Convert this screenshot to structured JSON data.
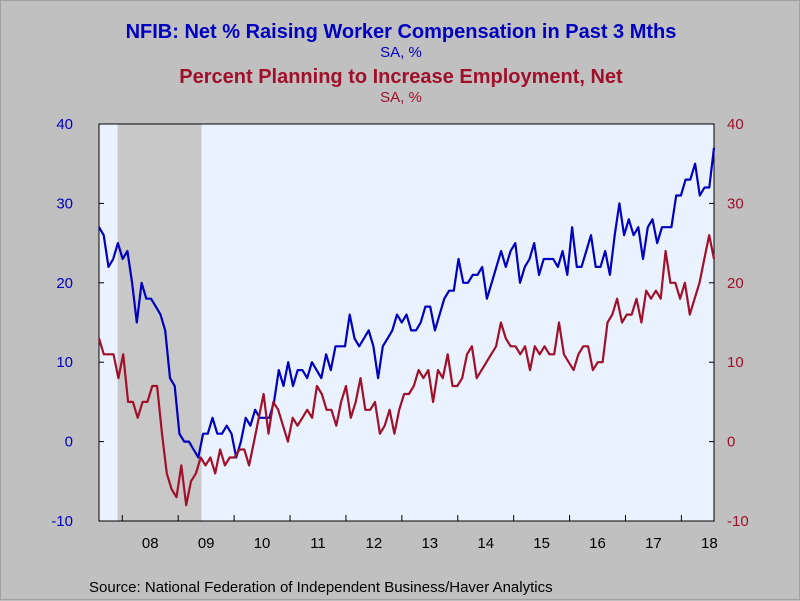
{
  "titles": {
    "title1": "NFIB: Net % Raising Worker Compensation in Past 3 Mths",
    "subtitle1": "SA, %",
    "title2": "Percent Planning to Increase Employment, Net",
    "subtitle2": "SA, %"
  },
  "source": "Source:  National Federation of Independent Business/Haver Analytics",
  "colors": {
    "background": "#c0c0c0",
    "plot_bg": "#eaf2ff",
    "recession": "#c8c8c8",
    "series1": "#0000c0",
    "series2": "#a0102a",
    "axis_left": "#0000c0",
    "axis_right": "#a0102a"
  },
  "chart_data": {
    "type": "line",
    "x_start": "2007-08",
    "x_end": "2018-08",
    "x_ticks": [
      "08",
      "09",
      "10",
      "11",
      "12",
      "13",
      "14",
      "15",
      "16",
      "17",
      "18"
    ],
    "ylim": [
      -10,
      40
    ],
    "y_ticks": [
      -10,
      0,
      10,
      20,
      30,
      40
    ],
    "y2lim": [
      -10,
      40
    ],
    "y2_ticks": [
      -10,
      0,
      10,
      20,
      30,
      40
    ],
    "grid": false,
    "recession_shading": [
      {
        "start": "2007-12",
        "end": "2009-06"
      }
    ],
    "series": [
      {
        "name": "NFIB: Net % Raising Worker Compensation in Past 3 Mths",
        "axis": "left",
        "values": [
          27,
          26,
          22,
          23,
          25,
          23,
          24,
          20,
          15,
          20,
          18,
          18,
          17,
          16,
          14,
          8,
          7,
          1,
          0,
          0,
          -1,
          -2,
          1,
          1,
          3,
          1,
          1,
          2,
          1,
          -2,
          0,
          3,
          2,
          4,
          3,
          3,
          3,
          5,
          9,
          7,
          10,
          7,
          9,
          9,
          8,
          10,
          9,
          8,
          11,
          9,
          12,
          12,
          12,
          16,
          13,
          12,
          13,
          14,
          12,
          8,
          12,
          13,
          14,
          16,
          15,
          16,
          14,
          14,
          15,
          17,
          17,
          14,
          16,
          18,
          19,
          19,
          23,
          20,
          20,
          21,
          21,
          22,
          18,
          20,
          22,
          24,
          22,
          24,
          25,
          20,
          22,
          23,
          25,
          21,
          23,
          23,
          23,
          22,
          24,
          21,
          27,
          22,
          22,
          24,
          26,
          22,
          22,
          24,
          21,
          26,
          30,
          26,
          28,
          26,
          27,
          23,
          27,
          28,
          25,
          27,
          27,
          27,
          31,
          31,
          33,
          33,
          35,
          31,
          32,
          32,
          37
        ]
      },
      {
        "name": "Percent Planning to Increase Employment, Net",
        "axis": "right",
        "values": [
          13,
          11,
          11,
          11,
          8,
          11,
          5,
          5,
          3,
          5,
          5,
          7,
          7,
          1,
          -4,
          -6,
          -7,
          -3,
          -8,
          -5,
          -4,
          -2,
          -3,
          -2,
          -4,
          -1,
          -3,
          -2,
          -2,
          -1,
          -1,
          -3,
          0,
          3,
          6,
          1,
          5,
          4,
          2,
          0,
          3,
          2,
          3,
          4,
          3,
          7,
          6,
          4,
          4,
          2,
          5,
          7,
          3,
          5,
          8,
          4,
          4,
          5,
          1,
          2,
          4,
          1,
          4,
          6,
          6,
          7,
          9,
          8,
          9,
          5,
          9,
          8,
          11,
          7,
          7,
          8,
          11,
          12,
          8,
          9,
          10,
          11,
          12,
          15,
          13,
          12,
          12,
          11,
          12,
          9,
          12,
          11,
          12,
          11,
          11,
          15,
          11,
          10,
          9,
          11,
          12,
          12,
          9,
          10,
          10,
          15,
          16,
          18,
          15,
          16,
          16,
          18,
          15,
          19,
          18,
          19,
          18,
          24,
          20,
          20,
          18,
          20,
          16,
          18,
          20,
          23,
          26,
          23
        ]
      }
    ]
  }
}
